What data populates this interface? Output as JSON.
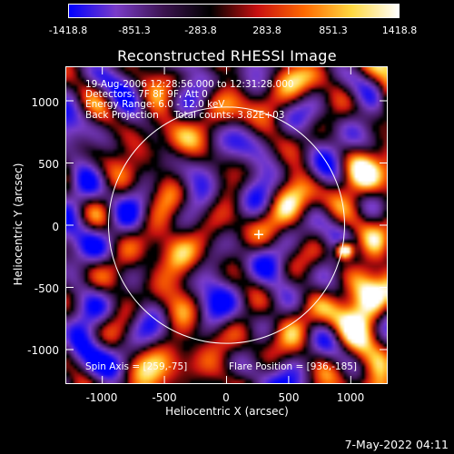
{
  "colorbar": {
    "ticks": [
      "-1418.8",
      "-851.3",
      "-283.8",
      "283.8",
      "851.3",
      "1418.8"
    ],
    "range": [
      -1418.8,
      1418.8
    ]
  },
  "title": "Reconstructed RHESSI Image",
  "info": {
    "line1": "19-Aug-2006 12:28:56.000 to 12:31:28.000",
    "line2": "Detectors: 7F 8F 9F, Att 0",
    "line3": "Energy Range: 6.0 - 12.0 keV",
    "line4": "Back Projection     Total counts: 3.82E+03"
  },
  "footer": {
    "spin_axis": "Spin Axis = [259,-75]",
    "flare_position": "Flare Position = [936,-185]"
  },
  "axes": {
    "xlabel": "Heliocentric X (arcsec)",
    "ylabel": "Heliocentric Y (arcsec)",
    "xticks": [
      "-1000",
      "-500",
      "0",
      "500",
      "1000"
    ],
    "yticks": [
      "1000",
      "500",
      "0",
      "-500",
      "-1000"
    ],
    "xlim": [
      -1290,
      1290
    ],
    "ylim": [
      -1270,
      1270
    ]
  },
  "overlay": {
    "solar_limb_radius_arcsec": 950,
    "spin_axis_marker": [
      259,
      -75
    ],
    "bright_source": [
      936,
      -185
    ]
  },
  "timestamp": "7-May-2022 04:11",
  "colors": {
    "background": "#000000",
    "foreground": "#ffffff",
    "colormap": [
      "#0000ff",
      "#7a3cc8",
      "#3c1450",
      "#000000",
      "#c81010",
      "#ff6a00",
      "#ffd840",
      "#ffffff"
    ]
  }
}
